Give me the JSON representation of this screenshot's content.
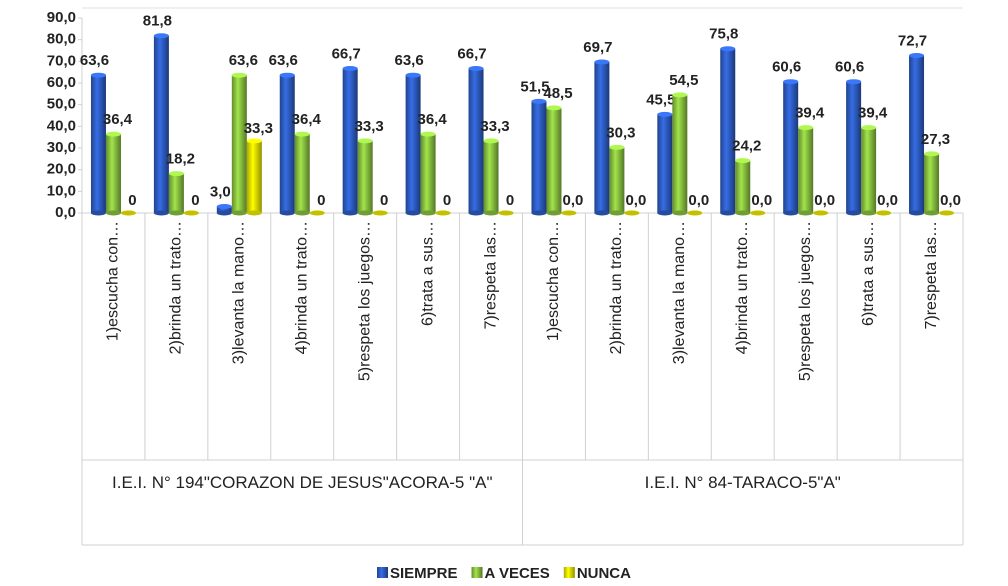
{
  "chart_data": {
    "type": "bar3d",
    "categories": [
      "1)escucha con…",
      "2)brinda un trato…",
      "3)levanta la mano…",
      "4)brinda un trato…",
      "5)respeta los juegos…",
      "6)trata a sus…",
      "7)respeta las…",
      "1)escucha con…",
      "2)brinda un trato…",
      "3)levanta la mano…",
      "4)brinda un trato…",
      "5)respeta los juegos…",
      "6)trata a sus…",
      "7)respeta las…"
    ],
    "groups": [
      "I.E.I. N° 194\"CORAZON DE JESUS\"ACORA-5 \"A\"",
      "I.E.I. N° 84-TARACO-5\"A\""
    ],
    "series": [
      {
        "name": "SIEMPRE",
        "color": "#2f5fc8",
        "values": [
          63.6,
          81.8,
          3.0,
          63.6,
          66.7,
          63.6,
          66.7,
          51.5,
          69.7,
          45.5,
          75.8,
          60.6,
          60.6,
          72.7
        ],
        "value_labels": [
          "63,6",
          "81,8",
          "3,0",
          "63,6",
          "66,7",
          "63,6",
          "66,7",
          "51,5",
          "69,7",
          "45,5",
          "75,8",
          "60,6",
          "60,6",
          "72,7"
        ]
      },
      {
        "name": "A VECES",
        "color": "#8dc641",
        "values": [
          36.4,
          18.2,
          63.6,
          36.4,
          33.3,
          36.4,
          33.3,
          48.5,
          30.3,
          54.5,
          24.2,
          39.4,
          39.4,
          27.3
        ],
        "value_labels": [
          "36,4",
          "18,2",
          "63,6",
          "36,4",
          "33,3",
          "36,4",
          "33,3",
          "48,5",
          "30,3",
          "54,5",
          "24,2",
          "39,4",
          "39,4",
          "27,3"
        ]
      },
      {
        "name": "NUNCA",
        "color": "#f2f000",
        "values": [
          0,
          0,
          33.3,
          0,
          0,
          0,
          0,
          0,
          0,
          0,
          0,
          0,
          0,
          0
        ],
        "value_labels": [
          "0",
          "0",
          "33,3",
          "0",
          "0",
          "0",
          "0",
          "0,0",
          "0,0",
          "0,0",
          "0,0",
          "0,0",
          "0,0",
          "0,0"
        ]
      }
    ],
    "ylim": [
      0,
      90
    ],
    "yticks": [
      {
        "value": 0,
        "label": "0,0"
      },
      {
        "value": 10,
        "label": "10,0"
      },
      {
        "value": 20,
        "label": "20,0"
      },
      {
        "value": 30,
        "label": "30,0"
      },
      {
        "value": 40,
        "label": "40,0"
      },
      {
        "value": 50,
        "label": "50,0"
      },
      {
        "value": 60,
        "label": "60,0"
      },
      {
        "value": 70,
        "label": "70,0"
      },
      {
        "value": 80,
        "label": "80,0"
      },
      {
        "value": 90,
        "label": "90,0"
      }
    ],
    "legend": "bottom"
  }
}
